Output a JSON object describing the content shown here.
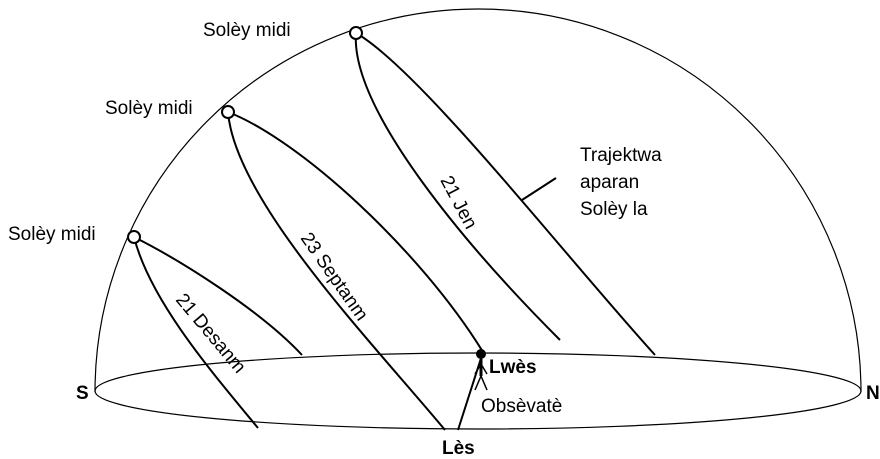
{
  "labels": {
    "noon": [
      "Solèy midi",
      "Solèy midi",
      "Solèy midi"
    ],
    "path_caption": [
      "Trajektwa",
      "aparan",
      "Solèy la"
    ],
    "june": "21 Jen",
    "september": "23 Septanm",
    "december": "21 Desanm",
    "west": "Lwès",
    "east": "Lès",
    "south": "S",
    "north": "N",
    "observer": "Obsèvatè"
  }
}
